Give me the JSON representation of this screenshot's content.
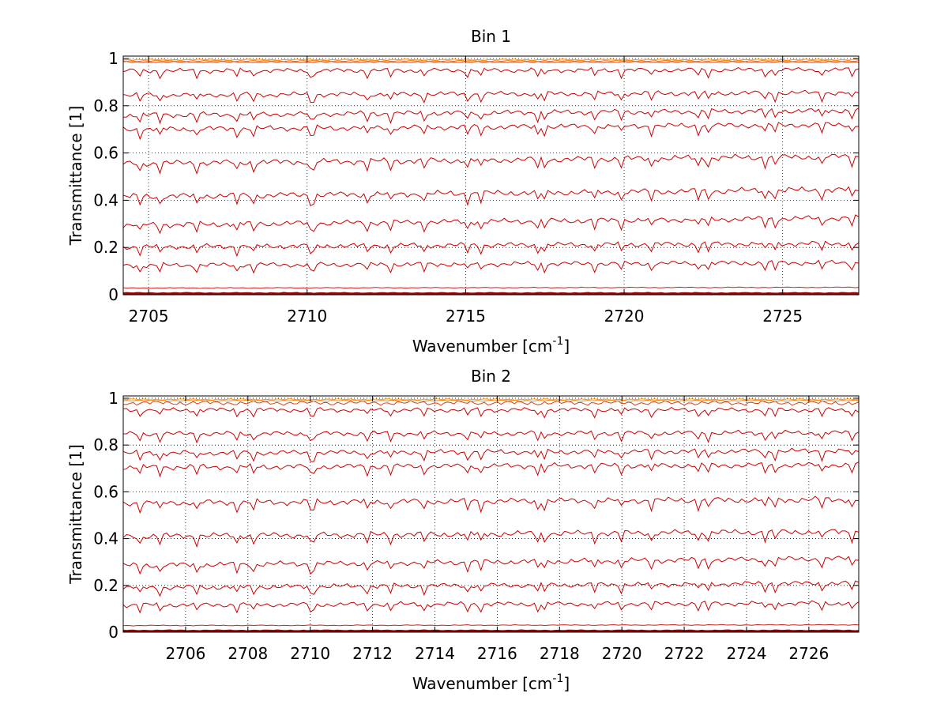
{
  "chart_data": [
    {
      "type": "line",
      "title": "Bin 1",
      "xlabel": "Wavenumber [cm",
      "xlabel_superscript": "-1",
      "xlabel_suffix": "]",
      "ylabel": "Transmittance [1]",
      "xlim": [
        2704.2,
        2727.4
      ],
      "ylim": [
        0,
        1.01
      ],
      "grid": "dotted",
      "xticks": [
        2705,
        2710,
        2715,
        2720,
        2725
      ],
      "xtick_labels": [
        "2705",
        "2710",
        "2715",
        "2720",
        "2725"
      ],
      "yticks": [
        0,
        0.2,
        0.4,
        0.6,
        0.8,
        1
      ],
      "ytick_labels": [
        "0",
        "0.2",
        "0.4",
        "0.6",
        "0.8",
        "1"
      ],
      "series_colors": [
        "#cc0000",
        "#e03010",
        "#ff8000",
        "#ff9a00",
        "#3050c0",
        "#990000"
      ],
      "trace_levels": [
        0.005,
        0.03,
        0.13,
        0.21,
        0.31,
        0.43,
        0.57,
        0.71,
        0.77,
        0.85,
        0.95,
        0.985,
        0.99,
        0.995
      ],
      "trace_slope": [
        0,
        -0.003,
        -0.012,
        -0.015,
        -0.03,
        -0.03,
        -0.03,
        -0.02,
        -0.02,
        -0.01,
        -0.005,
        0,
        0,
        0
      ],
      "trace_colors": [
        "#990000",
        "#cc2020",
        "#cc0000",
        "#cc0000",
        "#cc0000",
        "#cc0000",
        "#cc0000",
        "#cc0000",
        "#cc0000",
        "#cc0000",
        "#cc0000",
        "#e04010",
        "#ff8000",
        "#ff9a00"
      ]
    },
    {
      "type": "line",
      "title": "Bin 2",
      "xlabel": "Wavenumber [cm",
      "xlabel_superscript": "-1",
      "xlabel_suffix": "]",
      "ylabel": "Transmittance [1]",
      "xlim": [
        2704.0,
        2727.6
      ],
      "ylim": [
        0,
        1.01
      ],
      "grid": "dotted",
      "xticks": [
        2706,
        2708,
        2710,
        2712,
        2714,
        2716,
        2718,
        2720,
        2722,
        2724,
        2726
      ],
      "xtick_labels": [
        "2706",
        "2708",
        "2710",
        "2712",
        "2714",
        "2716",
        "2718",
        "2720",
        "2722",
        "2724",
        "2726"
      ],
      "yticks": [
        0,
        0.2,
        0.4,
        0.6,
        0.8,
        1
      ],
      "ytick_labels": [
        "0",
        "0.2",
        "0.4",
        "0.6",
        "0.8",
        "1"
      ],
      "series_colors": [
        "#cc0000",
        "#e03010",
        "#ff8000",
        "#ff9a00",
        "#3050c0",
        "#990000"
      ],
      "trace_levels": [
        0.005,
        0.03,
        0.12,
        0.2,
        0.3,
        0.42,
        0.56,
        0.71,
        0.77,
        0.85,
        0.95,
        0.98,
        0.99,
        0.995
      ],
      "trace_slope": [
        0,
        -0.003,
        -0.008,
        -0.02,
        -0.03,
        -0.02,
        -0.015,
        -0.01,
        -0.01,
        -0.005,
        0,
        0,
        0,
        0
      ],
      "trace_colors": [
        "#990000",
        "#cc2020",
        "#cc0000",
        "#cc0000",
        "#cc0000",
        "#cc0000",
        "#cc0000",
        "#cc0000",
        "#cc0000",
        "#cc0000",
        "#cc0000",
        "#e04010",
        "#ff8000",
        "#ff9a00"
      ]
    }
  ]
}
